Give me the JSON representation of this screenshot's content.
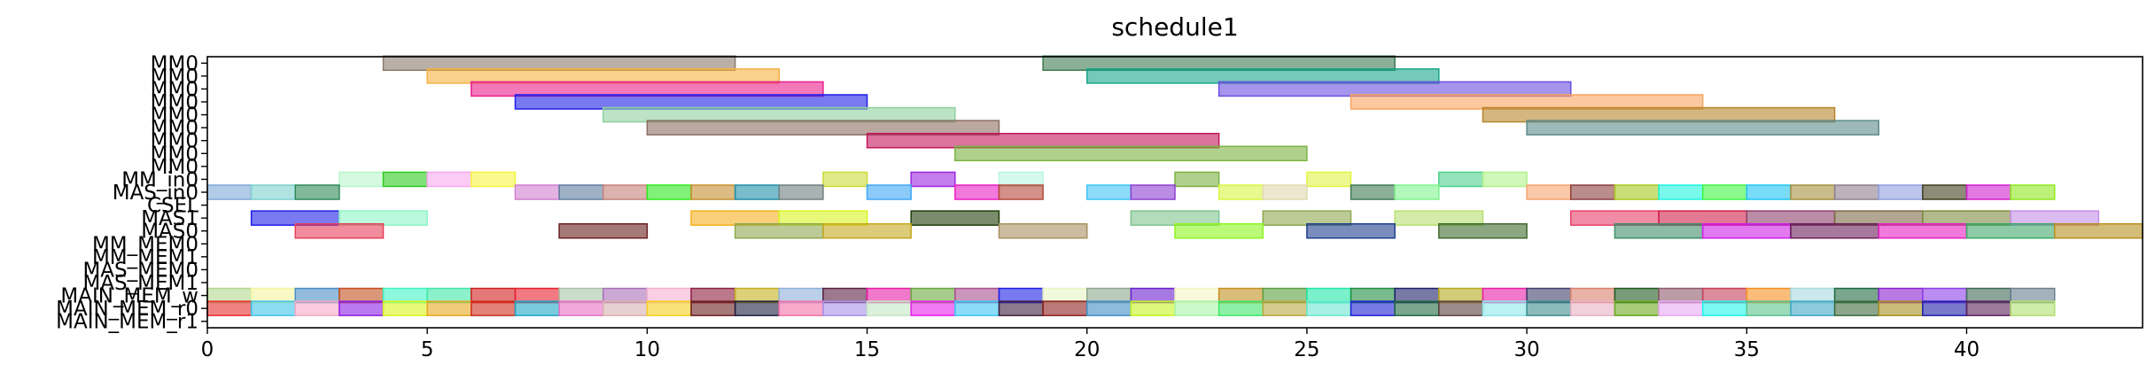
{
  "chart_data": {
    "type": "gantt",
    "title": "schedule1",
    "xlabel": "",
    "ylabel": "",
    "xlim": [
      0,
      44
    ],
    "x_ticks": [
      0,
      5,
      10,
      15,
      20,
      25,
      30,
      35,
      40
    ],
    "rows": [
      "MM0",
      "MM0",
      "MM0",
      "MM0",
      "MM0",
      "MM0",
      "MM0",
      "MM0",
      "MM0",
      "MM_in0",
      "MAS_in0",
      "CSEL",
      "MAS1",
      "MAS0",
      "MM_MEM0",
      "MM_MEM1",
      "MAS_MEM0",
      "MAS_MEM1",
      "MAIN_MEM_w",
      "MAIN_MEM_r0",
      "MAIN_MEM_r1"
    ],
    "bars": [
      {
        "row": 0,
        "start": 4,
        "end": 12,
        "color": "#8c7b6e"
      },
      {
        "row": 0,
        "start": 19,
        "end": 27,
        "color": "#3f7a52"
      },
      {
        "row": 1,
        "start": 5,
        "end": 13,
        "color": "#f5b041"
      },
      {
        "row": 1,
        "start": 20,
        "end": 28,
        "color": "#17a589"
      },
      {
        "row": 2,
        "start": 6,
        "end": 14,
        "color": "#e91e8c"
      },
      {
        "row": 2,
        "start": 23,
        "end": 31,
        "color": "#6a4ee0"
      },
      {
        "row": 3,
        "start": 7,
        "end": 15,
        "color": "#1f1fe8"
      },
      {
        "row": 3,
        "start": 26,
        "end": 34,
        "color": "#f8a460"
      },
      {
        "row": 4,
        "start": 9,
        "end": 17,
        "color": "#8fd19e"
      },
      {
        "row": 4,
        "start": 29,
        "end": 37,
        "color": "#b8862b"
      },
      {
        "row": 5,
        "start": 10,
        "end": 18,
        "color": "#8d6e63"
      },
      {
        "row": 5,
        "start": 30,
        "end": 38,
        "color": "#5d8a8c"
      },
      {
        "row": 6,
        "start": 15,
        "end": 23,
        "color": "#c2185b"
      },
      {
        "row": 7,
        "start": 17,
        "end": 25,
        "color": "#7cb342"
      },
      {
        "row": 9,
        "start": 3,
        "end": 4,
        "color": "#b9f6ca"
      },
      {
        "row": 9,
        "start": 4,
        "end": 5,
        "color": "#2ecc1f"
      },
      {
        "row": 9,
        "start": 5,
        "end": 6,
        "color": "#f8a8f0"
      },
      {
        "row": 9,
        "start": 6,
        "end": 7,
        "color": "#f5f542"
      },
      {
        "row": 9,
        "start": 14,
        "end": 15,
        "color": "#cddc39"
      },
      {
        "row": 9,
        "start": 16,
        "end": 17,
        "color": "#9c27e0"
      },
      {
        "row": 9,
        "start": 18,
        "end": 19,
        "color": "#b9f6e0"
      },
      {
        "row": 9,
        "start": 22,
        "end": 23,
        "color": "#7cb342"
      },
      {
        "row": 9,
        "start": 25,
        "end": 26,
        "color": "#e1f542"
      },
      {
        "row": 9,
        "start": 28,
        "end": 29,
        "color": "#4cd18e"
      },
      {
        "row": 9,
        "start": 29,
        "end": 30,
        "color": "#b2f28a"
      },
      {
        "row": 10,
        "start": 0,
        "end": 1,
        "color": "#7fa8d9"
      },
      {
        "row": 10,
        "start": 1,
        "end": 2,
        "color": "#7fd1d1"
      },
      {
        "row": 10,
        "start": 2,
        "end": 3,
        "color": "#2e8b57"
      },
      {
        "row": 10,
        "start": 7,
        "end": 8,
        "color": "#d17fd1"
      },
      {
        "row": 10,
        "start": 8,
        "end": 9,
        "color": "#5f7f9f"
      },
      {
        "row": 10,
        "start": 9,
        "end": 10,
        "color": "#c4807a"
      },
      {
        "row": 10,
        "start": 10,
        "end": 11,
        "color": "#2ee81f"
      },
      {
        "row": 10,
        "start": 11,
        "end": 12,
        "color": "#c4902e"
      },
      {
        "row": 10,
        "start": 12,
        "end": 13,
        "color": "#1f8fa8"
      },
      {
        "row": 10,
        "start": 13,
        "end": 14,
        "color": "#6f7f7f"
      },
      {
        "row": 10,
        "start": 15,
        "end": 16,
        "color": "#3fa8f5"
      },
      {
        "row": 10,
        "start": 17,
        "end": 18,
        "color": "#e81fc4"
      },
      {
        "row": 10,
        "start": 18,
        "end": 19,
        "color": "#b5483a"
      },
      {
        "row": 10,
        "start": 20,
        "end": 21,
        "color": "#3fc4f5"
      },
      {
        "row": 10,
        "start": 21,
        "end": 22,
        "color": "#8e3fd1"
      },
      {
        "row": 10,
        "start": 23,
        "end": 24,
        "color": "#d9f542"
      },
      {
        "row": 10,
        "start": 24,
        "end": 25,
        "color": "#e0d9b0"
      },
      {
        "row": 10,
        "start": 26,
        "end": 27,
        "color": "#3f7a52"
      },
      {
        "row": 10,
        "start": 27,
        "end": 28,
        "color": "#7ff58e"
      },
      {
        "row": 10,
        "start": 30,
        "end": 31,
        "color": "#f5a570"
      },
      {
        "row": 10,
        "start": 31,
        "end": 32,
        "color": "#8e3f3f"
      },
      {
        "row": 10,
        "start": 32,
        "end": 33,
        "color": "#a8c81f"
      },
      {
        "row": 10,
        "start": 33,
        "end": 34,
        "color": "#1ff5e0"
      },
      {
        "row": 10,
        "start": 34,
        "end": 35,
        "color": "#3ff542"
      },
      {
        "row": 10,
        "start": 35,
        "end": 36,
        "color": "#1fc4f5"
      },
      {
        "row": 10,
        "start": 36,
        "end": 37,
        "color": "#a89040"
      },
      {
        "row": 10,
        "start": 37,
        "end": 38,
        "color": "#8f7f8f"
      },
      {
        "row": 10,
        "start": 38,
        "end": 39,
        "color": "#8f9fe0"
      },
      {
        "row": 10,
        "start": 39,
        "end": 40,
        "color": "#3f3f1f"
      },
      {
        "row": 10,
        "start": 40,
        "end": 41,
        "color": "#d11fd1"
      },
      {
        "row": 10,
        "start": 41,
        "end": 42,
        "color": "#8ee81f"
      },
      {
        "row": 12,
        "start": 1,
        "end": 3,
        "color": "#1f1fe8"
      },
      {
        "row": 12,
        "start": 3,
        "end": 5,
        "color": "#8ef5c4"
      },
      {
        "row": 12,
        "start": 11,
        "end": 13,
        "color": "#f5b01f"
      },
      {
        "row": 12,
        "start": 13,
        "end": 15,
        "color": "#d9f51f"
      },
      {
        "row": 12,
        "start": 16,
        "end": 18,
        "color": "#1f3f0a"
      },
      {
        "row": 12,
        "start": 21,
        "end": 23,
        "color": "#7fc48e"
      },
      {
        "row": 12,
        "start": 24,
        "end": 26,
        "color": "#8fa850"
      },
      {
        "row": 12,
        "start": 27,
        "end": 29,
        "color": "#b8e070"
      },
      {
        "row": 12,
        "start": 31,
        "end": 33,
        "color": "#e8406a"
      },
      {
        "row": 12,
        "start": 33,
        "end": 35,
        "color": "#d11f4a"
      },
      {
        "row": 12,
        "start": 35,
        "end": 37,
        "color": "#8e3f6a"
      },
      {
        "row": 12,
        "start": 37,
        "end": 39,
        "color": "#7f6a4a"
      },
      {
        "row": 12,
        "start": 39,
        "end": 41,
        "color": "#7f8a3f"
      },
      {
        "row": 12,
        "start": 41,
        "end": 43,
        "color": "#c48ee8"
      },
      {
        "row": 13,
        "start": 2,
        "end": 4,
        "color": "#e8405a"
      },
      {
        "row": 13,
        "start": 8,
        "end": 10,
        "color": "#6a1f1f"
      },
      {
        "row": 13,
        "start": 12,
        "end": 14,
        "color": "#8fa850"
      },
      {
        "row": 13,
        "start": 14,
        "end": 16,
        "color": "#c4a81f"
      },
      {
        "row": 13,
        "start": 18,
        "end": 20,
        "color": "#a89060"
      },
      {
        "row": 13,
        "start": 22,
        "end": 24,
        "color": "#8ef51f"
      },
      {
        "row": 13,
        "start": 25,
        "end": 27,
        "color": "#1f3f8e"
      },
      {
        "row": 13,
        "start": 28,
        "end": 30,
        "color": "#3f6a2e"
      },
      {
        "row": 13,
        "start": 32,
        "end": 34,
        "color": "#3f8e6a"
      },
      {
        "row": 13,
        "start": 34,
        "end": 36,
        "color": "#d11fe8"
      },
      {
        "row": 13,
        "start": 36,
        "end": 38,
        "color": "#6a1f5a"
      },
      {
        "row": 13,
        "start": 38,
        "end": 40,
        "color": "#e81fc4"
      },
      {
        "row": 13,
        "start": 40,
        "end": 42,
        "color": "#3fa86a"
      },
      {
        "row": 13,
        "start": 42,
        "end": 44,
        "color": "#b8901f"
      },
      {
        "row": 18,
        "start": 0,
        "end": 1,
        "color": "#b0d98e"
      },
      {
        "row": 18,
        "start": 1,
        "end": 2,
        "color": "#f5f5a0"
      },
      {
        "row": 18,
        "start": 2,
        "end": 3,
        "color": "#4a8ec4"
      },
      {
        "row": 18,
        "start": 3,
        "end": 4,
        "color": "#c4501f"
      },
      {
        "row": 18,
        "start": 4,
        "end": 5,
        "color": "#3ff5c4"
      },
      {
        "row": 18,
        "start": 5,
        "end": 6,
        "color": "#3fe8a8"
      },
      {
        "row": 18,
        "start": 6,
        "end": 7,
        "color": "#d11f1f"
      },
      {
        "row": 18,
        "start": 7,
        "end": 8,
        "color": "#e81f2e"
      },
      {
        "row": 18,
        "start": 8,
        "end": 9,
        "color": "#a8c4a8"
      },
      {
        "row": 18,
        "start": 9,
        "end": 10,
        "color": "#a870b8"
      },
      {
        "row": 18,
        "start": 10,
        "end": 11,
        "color": "#f5b0d1"
      },
      {
        "row": 18,
        "start": 11,
        "end": 12,
        "color": "#8e1f3f"
      },
      {
        "row": 18,
        "start": 12,
        "end": 13,
        "color": "#c4b01f"
      },
      {
        "row": 18,
        "start": 13,
        "end": 14,
        "color": "#8eb0d9"
      },
      {
        "row": 18,
        "start": 14,
        "end": 15,
        "color": "#5a1f3f"
      },
      {
        "row": 18,
        "start": 15,
        "end": 16,
        "color": "#e81fa8"
      },
      {
        "row": 18,
        "start": 16,
        "end": 17,
        "color": "#6aa83f"
      },
      {
        "row": 18,
        "start": 17,
        "end": 18,
        "color": "#a8508e"
      },
      {
        "row": 18,
        "start": 18,
        "end": 19,
        "color": "#1f1fe8"
      },
      {
        "row": 18,
        "start": 19,
        "end": 20,
        "color": "#e8f5c4"
      },
      {
        "row": 18,
        "start": 20,
        "end": 21,
        "color": "#8ea88e"
      },
      {
        "row": 18,
        "start": 21,
        "end": 22,
        "color": "#6a1fd1"
      },
      {
        "row": 18,
        "start": 22,
        "end": 23,
        "color": "#f5f5c4"
      },
      {
        "row": 18,
        "start": 23,
        "end": 24,
        "color": "#c4901f"
      },
      {
        "row": 18,
        "start": 24,
        "end": 25,
        "color": "#5a9e3f"
      },
      {
        "row": 18,
        "start": 25,
        "end": 26,
        "color": "#1fe8a8"
      },
      {
        "row": 18,
        "start": 26,
        "end": 27,
        "color": "#1f8e3f"
      },
      {
        "row": 18,
        "start": 27,
        "end": 28,
        "color": "#1f1f6a"
      },
      {
        "row": 18,
        "start": 28,
        "end": 29,
        "color": "#b8a81f"
      },
      {
        "row": 18,
        "start": 29,
        "end": 30,
        "color": "#e81fa8"
      },
      {
        "row": 18,
        "start": 30,
        "end": 31,
        "color": "#3f3f6a"
      },
      {
        "row": 18,
        "start": 31,
        "end": 32,
        "color": "#d9806a"
      },
      {
        "row": 18,
        "start": 32,
        "end": 33,
        "color": "#1f5a1f"
      },
      {
        "row": 18,
        "start": 33,
        "end": 34,
        "color": "#8e5a6a"
      },
      {
        "row": 18,
        "start": 34,
        "end": 35,
        "color": "#c4405a"
      },
      {
        "row": 18,
        "start": 35,
        "end": 36,
        "color": "#f5901f"
      },
      {
        "row": 18,
        "start": 36,
        "end": 37,
        "color": "#a8d9e0"
      },
      {
        "row": 18,
        "start": 37,
        "end": 38,
        "color": "#1f6a3f"
      },
      {
        "row": 18,
        "start": 38,
        "end": 39,
        "color": "#8e1fd1"
      },
      {
        "row": 18,
        "start": 39,
        "end": 40,
        "color": "#8e3fe8"
      },
      {
        "row": 18,
        "start": 40,
        "end": 41,
        "color": "#3f6a5a"
      },
      {
        "row": 18,
        "start": 41,
        "end": 42,
        "color": "#6a7f8e"
      },
      {
        "row": 19,
        "start": 0,
        "end": 1,
        "color": "#e82e2e"
      },
      {
        "row": 19,
        "start": 1,
        "end": 2,
        "color": "#3fc4e8"
      },
      {
        "row": 19,
        "start": 2,
        "end": 3,
        "color": "#f5a8c4"
      },
      {
        "row": 19,
        "start": 3,
        "end": 4,
        "color": "#8e1fe8"
      },
      {
        "row": 19,
        "start": 4,
        "end": 5,
        "color": "#d9f51f"
      },
      {
        "row": 19,
        "start": 5,
        "end": 6,
        "color": "#e8a81f"
      },
      {
        "row": 19,
        "start": 6,
        "end": 7,
        "color": "#d12e1f"
      },
      {
        "row": 19,
        "start": 7,
        "end": 8,
        "color": "#1fa8c4"
      },
      {
        "row": 19,
        "start": 8,
        "end": 9,
        "color": "#e870c4"
      },
      {
        "row": 19,
        "start": 9,
        "end": 10,
        "color": "#d9b0b0"
      },
      {
        "row": 19,
        "start": 10,
        "end": 11,
        "color": "#f5d01f"
      },
      {
        "row": 19,
        "start": 11,
        "end": 12,
        "color": "#6a1f1f"
      },
      {
        "row": 19,
        "start": 12,
        "end": 13,
        "color": "#1f1f3f"
      },
      {
        "row": 19,
        "start": 13,
        "end": 14,
        "color": "#f570a8"
      },
      {
        "row": 19,
        "start": 14,
        "end": 15,
        "color": "#a890e8"
      },
      {
        "row": 19,
        "start": 15,
        "end": 16,
        "color": "#c4e8c4"
      },
      {
        "row": 19,
        "start": 16,
        "end": 17,
        "color": "#e81fe8"
      },
      {
        "row": 19,
        "start": 17,
        "end": 18,
        "color": "#3fc4f5"
      },
      {
        "row": 19,
        "start": 18,
        "end": 19,
        "color": "#3f1f3f"
      },
      {
        "row": 19,
        "start": 19,
        "end": 20,
        "color": "#8e1f1f"
      },
      {
        "row": 19,
        "start": 20,
        "end": 21,
        "color": "#3f8ec4"
      },
      {
        "row": 19,
        "start": 21,
        "end": 22,
        "color": "#c4f51f"
      },
      {
        "row": 19,
        "start": 22,
        "end": 23,
        "color": "#a8f5a8"
      },
      {
        "row": 19,
        "start": 23,
        "end": 24,
        "color": "#3fe86a"
      },
      {
        "row": 19,
        "start": 24,
        "end": 25,
        "color": "#b8a83f"
      },
      {
        "row": 19,
        "start": 25,
        "end": 26,
        "color": "#6ae8d1"
      },
      {
        "row": 19,
        "start": 26,
        "end": 27,
        "color": "#1f1fd1"
      },
      {
        "row": 19,
        "start": 27,
        "end": 28,
        "color": "#1f6a3f"
      },
      {
        "row": 19,
        "start": 28,
        "end": 29,
        "color": "#5a3f3f"
      },
      {
        "row": 19,
        "start": 29,
        "end": 30,
        "color": "#8ee8e8"
      },
      {
        "row": 19,
        "start": 30,
        "end": 31,
        "color": "#3f8e8e"
      },
      {
        "row": 19,
        "start": 31,
        "end": 32,
        "color": "#e8b0c4"
      },
      {
        "row": 19,
        "start": 32,
        "end": 33,
        "color": "#6aa81f"
      },
      {
        "row": 19,
        "start": 33,
        "end": 34,
        "color": "#e8a8f5"
      },
      {
        "row": 19,
        "start": 34,
        "end": 35,
        "color": "#1ff5e8"
      },
      {
        "row": 19,
        "start": 35,
        "end": 36,
        "color": "#5ac48e"
      },
      {
        "row": 19,
        "start": 36,
        "end": 37,
        "color": "#3fa8c4"
      },
      {
        "row": 19,
        "start": 37,
        "end": 38,
        "color": "#3f6a3f"
      },
      {
        "row": 19,
        "start": 38,
        "end": 39,
        "color": "#a8901f"
      },
      {
        "row": 19,
        "start": 39,
        "end": 40,
        "color": "#1f1fa8"
      },
      {
        "row": 19,
        "start": 40,
        "end": 41,
        "color": "#5a1f5a"
      },
      {
        "row": 19,
        "start": 41,
        "end": 42,
        "color": "#b0e070"
      }
    ]
  }
}
